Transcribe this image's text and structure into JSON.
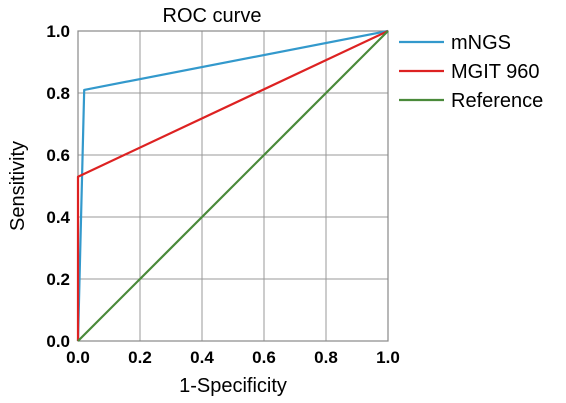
{
  "chart_data": {
    "type": "line",
    "title": "ROC curve",
    "xlabel": "1-Specificity",
    "ylabel": "Sensitivity",
    "xlim": [
      0,
      1
    ],
    "ylim": [
      0,
      1
    ],
    "xticks": [
      "0.0",
      "0.2",
      "0.4",
      "0.6",
      "0.8",
      "1.0"
    ],
    "yticks": [
      "0.0",
      "0.2",
      "0.4",
      "0.6",
      "0.8",
      "1.0"
    ],
    "grid": true,
    "legend_position": "right",
    "series": [
      {
        "name": "mNGS",
        "color": "#3399cc",
        "x": [
          0,
          0,
          0.02,
          1
        ],
        "y": [
          0,
          0.0,
          0.81,
          1
        ]
      },
      {
        "name": "MGIT 960",
        "color": "#dd2222",
        "x": [
          0,
          0,
          1
        ],
        "y": [
          0,
          0.53,
          1
        ]
      },
      {
        "name": "Reference",
        "color": "#4a8a3a",
        "x": [
          0,
          1
        ],
        "y": [
          0,
          1
        ]
      }
    ]
  }
}
